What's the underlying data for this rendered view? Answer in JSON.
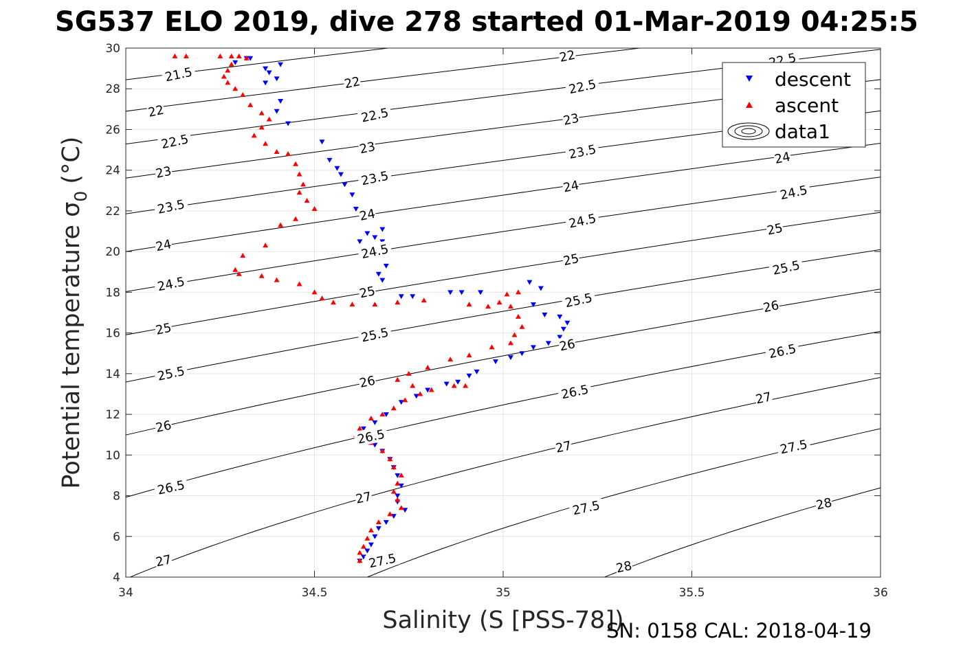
{
  "title": "SG537 ELO 2019, dive 278 started 01-Mar-2019 04:25:5",
  "footer": "SN: 0158  CAL: 2018-04-19",
  "colors": {
    "descent": "#0000ff",
    "ascent": "#ff0000",
    "contour": "#000000",
    "grid": "#e5e5e5",
    "axes": "#262626"
  },
  "chart_data": {
    "type": "scatter",
    "title": "SG537 ELO 2019, dive 278 started 01-Mar-2019 04:25:5",
    "xlabel": "Salinity (S [PSS-78])",
    "ylabel_main": "Potential temperature σ",
    "ylabel_sub": "0",
    "ylabel_unit": "(°C)",
    "xlim": [
      34,
      36
    ],
    "ylim": [
      4,
      30
    ],
    "xticks": [
      34,
      34.5,
      35,
      35.5,
      36
    ],
    "yticks": [
      4,
      6,
      8,
      10,
      12,
      14,
      16,
      18,
      20,
      22,
      24,
      26,
      28,
      30
    ],
    "grid": true,
    "legend": {
      "placement": "top-right",
      "entries": [
        {
          "label": "descent",
          "marker": "triangle-down",
          "color": "#0000ff"
        },
        {
          "label": "ascent",
          "marker": "triangle-up",
          "color": "#ff0000"
        },
        {
          "label": "data1",
          "marker": "contour",
          "color": "#000000"
        }
      ]
    },
    "contours": {
      "levels": [
        21.5,
        22,
        22.5,
        23,
        23.5,
        24,
        24.5,
        25,
        25.5,
        26,
        26.5,
        27,
        27.5,
        28
      ],
      "label_positions": [
        {
          "level": "21.5",
          "s": 34.14,
          "t": 28.7
        },
        {
          "level": "22",
          "s": 34.08,
          "t": 26.9
        },
        {
          "level": "22.5",
          "s": 34.13,
          "t": 25.4
        },
        {
          "level": "23",
          "s": 34.1,
          "t": 23.9
        },
        {
          "level": "23.5",
          "s": 34.12,
          "t": 22.2
        },
        {
          "level": "24",
          "s": 34.1,
          "t": 20.3
        },
        {
          "level": "24.5",
          "s": 34.12,
          "t": 18.4
        },
        {
          "level": "25",
          "s": 34.1,
          "t": 16.2
        },
        {
          "level": "25.5",
          "s": 34.12,
          "t": 14.0
        },
        {
          "level": "26",
          "s": 34.1,
          "t": 11.4
        },
        {
          "level": "26.5",
          "s": 34.12,
          "t": 8.4
        },
        {
          "level": "27",
          "s": 34.1,
          "t": 4.8
        },
        {
          "level": "22",
          "s": 34.6,
          "t": 28.3
        },
        {
          "level": "22.5",
          "s": 34.66,
          "t": 26.7
        },
        {
          "level": "23",
          "s": 34.64,
          "t": 25.1
        },
        {
          "level": "23.5",
          "s": 34.66,
          "t": 23.6
        },
        {
          "level": "24",
          "s": 34.64,
          "t": 21.8
        },
        {
          "level": "24.5",
          "s": 34.66,
          "t": 20.0
        },
        {
          "level": "25",
          "s": 34.64,
          "t": 18.0
        },
        {
          "level": "25.5",
          "s": 34.66,
          "t": 15.9
        },
        {
          "level": "26",
          "s": 34.64,
          "t": 13.6
        },
        {
          "level": "26.5",
          "s": 34.65,
          "t": 10.9
        },
        {
          "level": "27",
          "s": 34.63,
          "t": 7.9
        },
        {
          "level": "27.5",
          "s": 34.68,
          "t": 4.8
        },
        {
          "level": "22",
          "s": 35.17,
          "t": 29.6
        },
        {
          "level": "22.5",
          "s": 35.21,
          "t": 28.1
        },
        {
          "level": "23",
          "s": 35.18,
          "t": 26.5
        },
        {
          "level": "23.5",
          "s": 35.21,
          "t": 24.9
        },
        {
          "level": "24",
          "s": 35.18,
          "t": 23.2
        },
        {
          "level": "24.5",
          "s": 35.21,
          "t": 21.5
        },
        {
          "level": "25",
          "s": 35.18,
          "t": 19.6
        },
        {
          "level": "25.5",
          "s": 35.2,
          "t": 17.6
        },
        {
          "level": "26",
          "s": 35.17,
          "t": 15.4
        },
        {
          "level": "26.5",
          "s": 35.19,
          "t": 13.1
        },
        {
          "level": "27",
          "s": 35.16,
          "t": 10.4
        },
        {
          "level": "27.5",
          "s": 35.22,
          "t": 7.4
        },
        {
          "level": "28",
          "s": 35.32,
          "t": 4.5
        },
        {
          "level": "22.5",
          "s": 35.74,
          "t": 29.4
        },
        {
          "level": "24",
          "s": 35.74,
          "t": 24.6
        },
        {
          "level": "24.5",
          "s": 35.77,
          "t": 22.9
        },
        {
          "level": "25",
          "s": 35.72,
          "t": 21.1
        },
        {
          "level": "25.5",
          "s": 35.75,
          "t": 19.2
        },
        {
          "level": "26",
          "s": 35.71,
          "t": 17.3
        },
        {
          "level": "26.5",
          "s": 35.74,
          "t": 15.1
        },
        {
          "level": "27",
          "s": 35.69,
          "t": 12.8
        },
        {
          "level": "27.5",
          "s": 35.77,
          "t": 10.4
        },
        {
          "level": "28",
          "s": 35.85,
          "t": 7.6
        }
      ]
    },
    "series": [
      {
        "name": "descent",
        "marker": "triangle-down",
        "points": [
          [
            34.32,
            29.5
          ],
          [
            34.33,
            29.5
          ],
          [
            34.29,
            29.3
          ],
          [
            34.37,
            29.0
          ],
          [
            34.41,
            29.2
          ],
          [
            34.38,
            28.8
          ],
          [
            34.37,
            28.3
          ],
          [
            34.4,
            28.5
          ],
          [
            34.41,
            27.4
          ],
          [
            34.4,
            26.9
          ],
          [
            34.43,
            26.3
          ],
          [
            34.52,
            25.4
          ],
          [
            34.54,
            24.5
          ],
          [
            34.56,
            24.1
          ],
          [
            34.57,
            23.8
          ],
          [
            34.58,
            23.3
          ],
          [
            34.6,
            22.8
          ],
          [
            34.61,
            22.1
          ],
          [
            34.63,
            21.8
          ],
          [
            34.64,
            21.6
          ],
          [
            34.68,
            21.1
          ],
          [
            34.64,
            20.9
          ],
          [
            34.66,
            20.7
          ],
          [
            34.62,
            20.5
          ],
          [
            34.68,
            20.5
          ],
          [
            34.69,
            19.3
          ],
          [
            34.67,
            18.9
          ],
          [
            34.68,
            18.6
          ],
          [
            34.73,
            17.8
          ],
          [
            34.76,
            17.8
          ],
          [
            34.86,
            18.0
          ],
          [
            34.89,
            18.0
          ],
          [
            34.94,
            18.0
          ],
          [
            35.07,
            18.5
          ],
          [
            35.1,
            18.2
          ],
          [
            35.08,
            17.4
          ],
          [
            35.11,
            16.9
          ],
          [
            35.15,
            16.8
          ],
          [
            35.17,
            16.5
          ],
          [
            35.16,
            16.2
          ],
          [
            35.15,
            15.8
          ],
          [
            35.12,
            15.5
          ],
          [
            35.08,
            15.3
          ],
          [
            35.05,
            15.0
          ],
          [
            35.02,
            14.8
          ],
          [
            34.98,
            14.6
          ],
          [
            34.93,
            14.1
          ],
          [
            34.91,
            13.9
          ],
          [
            34.88,
            13.6
          ],
          [
            34.85,
            13.5
          ],
          [
            34.8,
            13.2
          ],
          [
            34.77,
            12.9
          ],
          [
            34.73,
            12.6
          ],
          [
            34.69,
            12.0
          ],
          [
            34.66,
            11.6
          ],
          [
            34.63,
            11.3
          ],
          [
            34.62,
            11.0
          ],
          [
            34.64,
            10.8
          ],
          [
            34.66,
            10.5
          ],
          [
            34.68,
            10.2
          ],
          [
            34.7,
            9.8
          ],
          [
            34.71,
            9.4
          ],
          [
            34.72,
            9.0
          ],
          [
            34.73,
            8.5
          ],
          [
            34.72,
            8.0
          ],
          [
            34.72,
            7.7
          ],
          [
            34.74,
            7.3
          ],
          [
            34.71,
            7.0
          ],
          [
            34.69,
            6.7
          ],
          [
            34.67,
            6.4
          ],
          [
            34.66,
            6.0
          ],
          [
            34.65,
            5.6
          ],
          [
            34.64,
            5.3
          ],
          [
            34.63,
            5.0
          ],
          [
            34.62,
            4.8
          ]
        ]
      },
      {
        "name": "ascent",
        "marker": "triangle-up",
        "points": [
          [
            34.13,
            29.6
          ],
          [
            34.16,
            29.6
          ],
          [
            34.25,
            29.6
          ],
          [
            34.28,
            29.6
          ],
          [
            34.3,
            29.6
          ],
          [
            34.32,
            29.5
          ],
          [
            34.28,
            29.2
          ],
          [
            34.27,
            28.9
          ],
          [
            34.26,
            28.6
          ],
          [
            34.27,
            28.3
          ],
          [
            34.29,
            28.0
          ],
          [
            34.31,
            27.7
          ],
          [
            34.33,
            27.2
          ],
          [
            34.36,
            26.8
          ],
          [
            34.38,
            26.5
          ],
          [
            34.36,
            26.1
          ],
          [
            34.34,
            25.7
          ],
          [
            34.37,
            25.3
          ],
          [
            34.4,
            24.9
          ],
          [
            34.43,
            24.8
          ],
          [
            34.45,
            24.3
          ],
          [
            34.46,
            23.8
          ],
          [
            34.47,
            23.3
          ],
          [
            34.46,
            22.9
          ],
          [
            34.48,
            22.5
          ],
          [
            34.5,
            22.1
          ],
          [
            34.45,
            21.6
          ],
          [
            34.41,
            21.3
          ],
          [
            34.37,
            20.3
          ],
          [
            34.31,
            19.8
          ],
          [
            34.29,
            19.1
          ],
          [
            34.3,
            18.9
          ],
          [
            34.36,
            18.8
          ],
          [
            34.4,
            18.6
          ],
          [
            34.46,
            18.4
          ],
          [
            34.5,
            18.0
          ],
          [
            34.52,
            17.7
          ],
          [
            34.55,
            17.5
          ],
          [
            34.6,
            17.4
          ],
          [
            34.66,
            17.4
          ],
          [
            34.72,
            17.5
          ],
          [
            34.79,
            17.6
          ],
          [
            34.91,
            17.4
          ],
          [
            34.96,
            17.3
          ],
          [
            34.99,
            17.5
          ],
          [
            35.01,
            17.9
          ],
          [
            35.04,
            18.0
          ],
          [
            35.02,
            17.3
          ],
          [
            35.04,
            16.8
          ],
          [
            35.05,
            16.3
          ],
          [
            35.03,
            15.9
          ],
          [
            35.02,
            15.5
          ],
          [
            34.97,
            15.3
          ],
          [
            34.91,
            14.9
          ],
          [
            34.86,
            14.7
          ],
          [
            34.8,
            14.3
          ],
          [
            34.75,
            14.0
          ],
          [
            34.72,
            13.7
          ],
          [
            34.76,
            13.4
          ],
          [
            34.81,
            13.2
          ],
          [
            34.87,
            13.4
          ],
          [
            34.9,
            13.4
          ],
          [
            34.78,
            13.0
          ],
          [
            34.74,
            12.7
          ],
          [
            34.71,
            12.3
          ],
          [
            34.68,
            12.0
          ],
          [
            34.65,
            11.8
          ],
          [
            34.62,
            11.3
          ],
          [
            34.61,
            11.0
          ],
          [
            34.63,
            10.8
          ],
          [
            34.65,
            10.6
          ],
          [
            34.68,
            10.2
          ],
          [
            34.7,
            9.8
          ],
          [
            34.71,
            9.4
          ],
          [
            34.73,
            9.0
          ],
          [
            34.72,
            8.6
          ],
          [
            34.71,
            8.2
          ],
          [
            34.72,
            7.8
          ],
          [
            34.73,
            7.4
          ],
          [
            34.7,
            7.1
          ],
          [
            34.67,
            6.7
          ],
          [
            34.65,
            6.3
          ],
          [
            34.64,
            5.9
          ],
          [
            34.63,
            5.5
          ],
          [
            34.62,
            5.2
          ],
          [
            34.62,
            4.8
          ]
        ]
      }
    ]
  }
}
